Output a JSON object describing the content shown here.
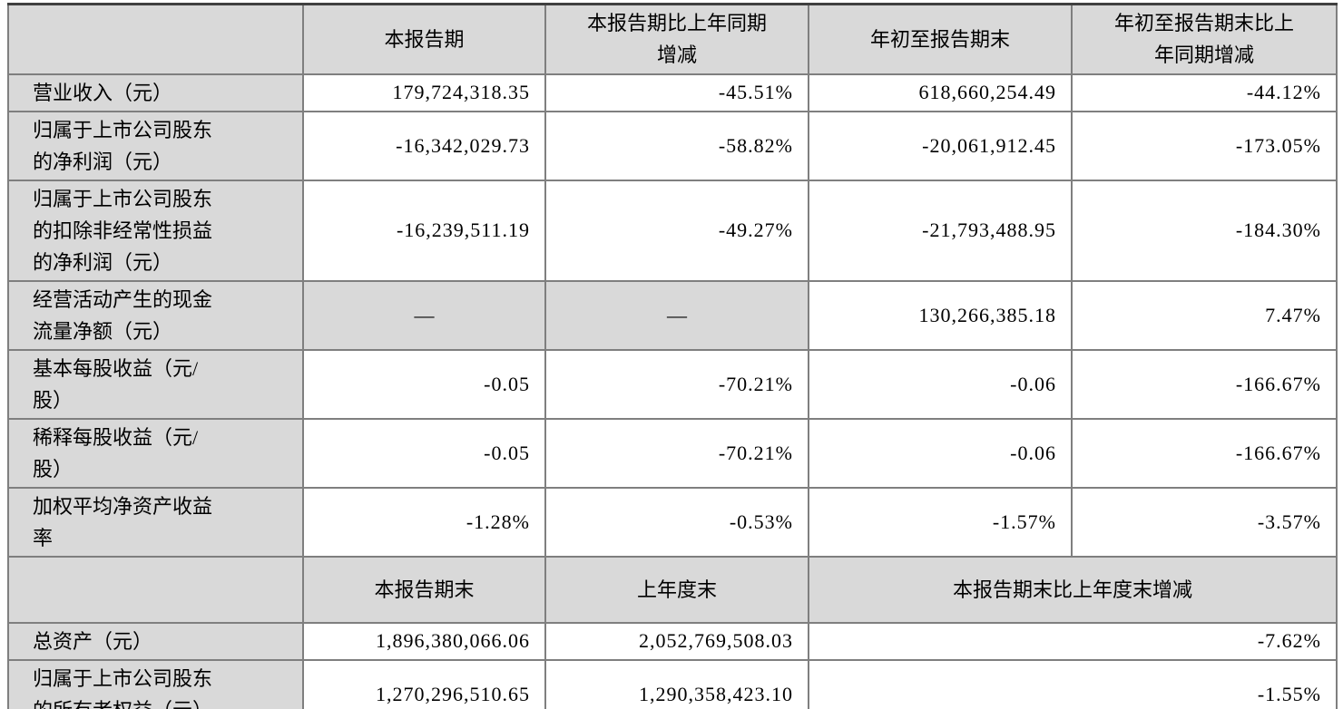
{
  "colors": {
    "cell_shade": "#d9d9d9",
    "grid_line": "#7f7f7f",
    "frame_line": "#404040"
  },
  "table": {
    "section1": {
      "columns": [
        "",
        "本报告期",
        "本报告期比上年同期\n增减",
        "年初至报告期末",
        "年初至报告期末比上\n年同期增减"
      ],
      "rows": [
        {
          "label": "营业收入（元）",
          "values": [
            "179,724,318.35",
            "-45.51%",
            "618,660,254.49",
            "-44.12%"
          ]
        },
        {
          "label": "归属于上市公司股东\n的净利润（元）",
          "values": [
            "-16,342,029.73",
            "-58.82%",
            "-20,061,912.45",
            "-173.05%"
          ]
        },
        {
          "label": "归属于上市公司股东\n的扣除非经常性损益\n的净利润（元）",
          "values": [
            "-16,239,511.19",
            "-49.27%",
            "-21,793,488.95",
            "-184.30%"
          ]
        },
        {
          "label": "经营活动产生的现金\n流量净额（元）",
          "values": [
            "—",
            "—",
            "130,266,385.18",
            "7.47%"
          ]
        },
        {
          "label": "基本每股收益（元/\n股）",
          "values": [
            "-0.05",
            "-70.21%",
            "-0.06",
            "-166.67%"
          ]
        },
        {
          "label": "稀释每股收益（元/\n股）",
          "values": [
            "-0.05",
            "-70.21%",
            "-0.06",
            "-166.67%"
          ]
        },
        {
          "label": "加权平均净资产收益\n率",
          "values": [
            "-1.28%",
            "-0.53%",
            "-1.57%",
            "-3.57%"
          ]
        }
      ]
    },
    "section2": {
      "columns": [
        "",
        "本报告期末",
        "上年度末",
        "本报告期末比上年度末增减"
      ],
      "rows": [
        {
          "label": "总资产（元）",
          "values": [
            "1,896,380,066.06",
            "2,052,769,508.03",
            "-7.62%"
          ]
        },
        {
          "label": "归属于上市公司股东\n的所有者权益（元）",
          "values": [
            "1,270,296,510.65",
            "1,290,358,423.10",
            "-1.55%"
          ]
        }
      ]
    }
  }
}
